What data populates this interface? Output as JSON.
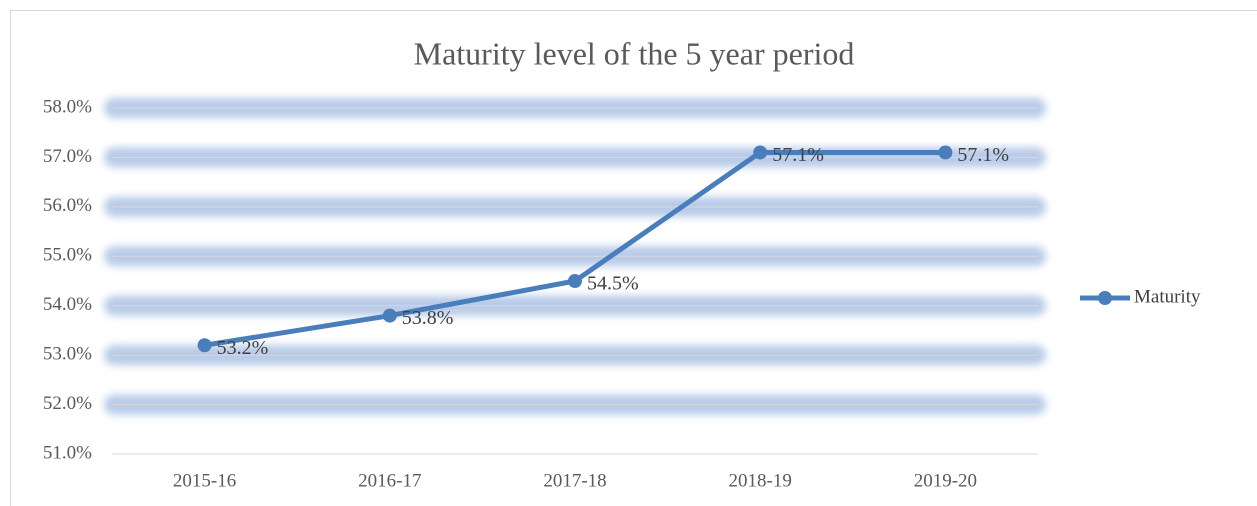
{
  "chart_data": {
    "type": "line",
    "title": "Maturity level of the 5 year period",
    "categories": [
      "2015-16",
      "2016-17",
      "2017-18",
      "2018-19",
      "2019-20"
    ],
    "series": [
      {
        "name": "Maturity",
        "color": "#4a7ebb",
        "values": [
          53.2,
          53.8,
          54.5,
          57.1,
          57.1
        ],
        "value_labels": [
          "53.2%",
          "53.8%",
          "54.5%",
          "57.1%",
          "57.1%"
        ]
      }
    ],
    "ylim": [
      51,
      58
    ],
    "yticks": [
      {
        "value": 51,
        "label": "51.0%"
      },
      {
        "value": 52,
        "label": "52.0%"
      },
      {
        "value": 53,
        "label": "53.0%"
      },
      {
        "value": 54,
        "label": "54.0%"
      },
      {
        "value": 55,
        "label": "55.0%"
      },
      {
        "value": 56,
        "label": "56.0%"
      },
      {
        "value": 57,
        "label": "57.0%"
      },
      {
        "value": 58,
        "label": "58.0%"
      }
    ],
    "grid": true,
    "legend": "right"
  }
}
